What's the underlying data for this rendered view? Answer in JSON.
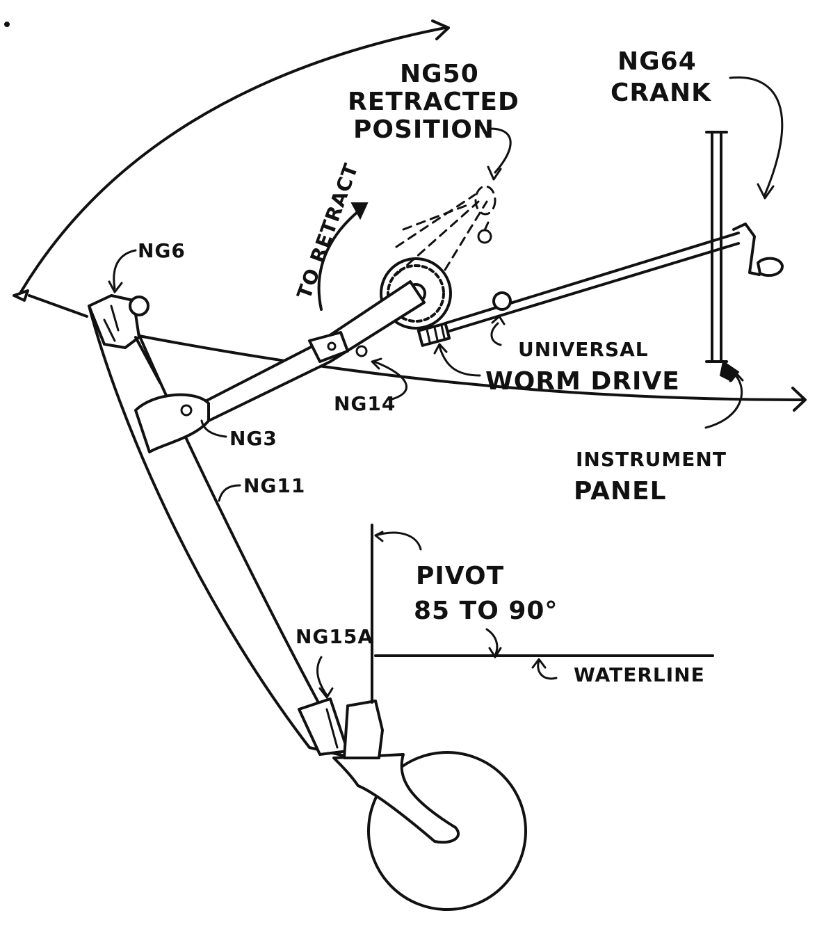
{
  "labels": {
    "ng50_line1": "NG50",
    "ng50_line2": "RETRACTED",
    "ng50_line3": "POSITION",
    "ng64_line1": "NG64",
    "ng64_line2": "CRANK",
    "to_retract": "TO RETRACT",
    "ng6": "NG6",
    "universal": "UNIVERSAL",
    "worm_drive": "WORM DRIVE",
    "ng14": "NG14",
    "ng3": "NG3",
    "ng11": "NG11",
    "instrument_line1": "INSTRUMENT",
    "instrument_line2": "PANEL",
    "pivot_line1": "PIVOT",
    "pivot_line2": "85 TO 90°",
    "ng15a": "NG15A",
    "waterline": "WATERLINE"
  }
}
